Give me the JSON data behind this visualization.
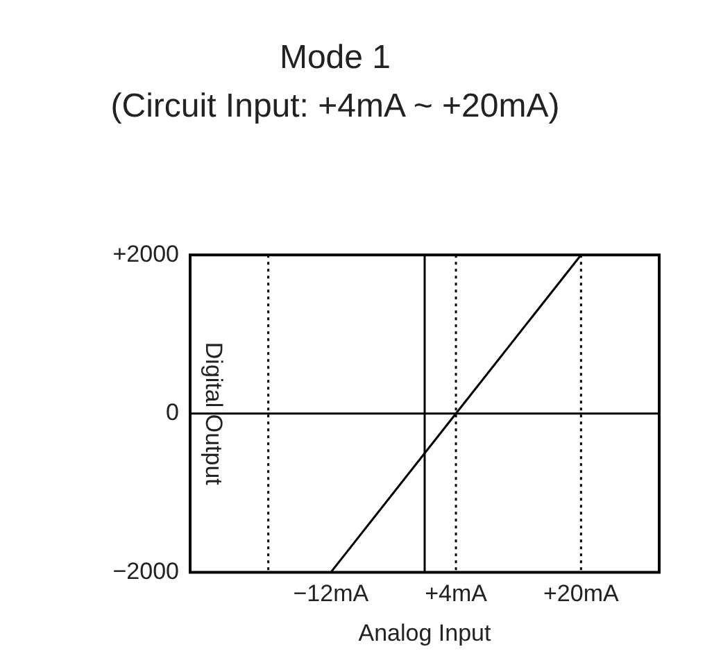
{
  "chart_data": {
    "type": "line",
    "title": "Mode 1",
    "subtitle": "(Circuit Input: +4mA ~ +20mA)",
    "xlabel": "Analog Input",
    "ylabel": "Digital Output",
    "x": [
      -12,
      4,
      20
    ],
    "series": [
      {
        "color": "#000000",
        "values": [
          -2000,
          0,
          2000
        ]
      }
    ],
    "xlim": [
      -30,
      30
    ],
    "xticks": [
      {
        "value": -12,
        "label": "−12mA"
      },
      {
        "value": 4,
        "label": "+4mA"
      },
      {
        "value": 20,
        "label": "+20mA"
      }
    ],
    "ylim": [
      -2000,
      2000
    ],
    "yticks": [
      {
        "value": -2000,
        "label": "−2000"
      },
      0,
      {
        "value": 2000,
        "label": "+2000"
      }
    ],
    "ref_lines": [
      {
        "axis": "x",
        "value": -20,
        "line_style": "dotted",
        "color": "#000000"
      },
      {
        "axis": "x",
        "value": 0,
        "line_style": "solid",
        "color": "#000000"
      },
      {
        "axis": "x",
        "value": 4,
        "line_style": "dotted",
        "color": "#000000"
      },
      {
        "axis": "x",
        "value": 20,
        "line_style": "dotted",
        "color": "#000000"
      },
      {
        "axis": "y",
        "value": 0,
        "line_style": "solid",
        "color": "#000000"
      }
    ],
    "grid": false,
    "legend": false,
    "marker": "none",
    "line_style": "solid"
  }
}
